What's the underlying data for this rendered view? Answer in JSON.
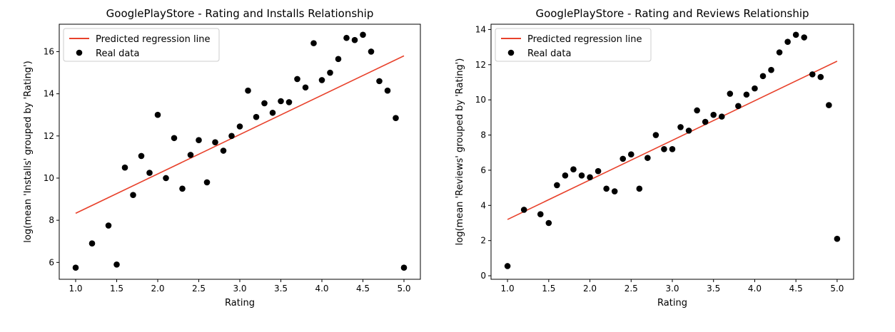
{
  "chart_data": [
    {
      "type": "scatter",
      "title": "GooglePlayStore - Rating and Installs Relationship",
      "xlabel": "Rating",
      "ylabel": "log(mean 'Installs' grouped by 'Rating')",
      "xlim": [
        0.8,
        5.2
      ],
      "ylim": [
        5.2,
        17.3
      ],
      "xticks": [
        "1.0",
        "1.5",
        "2.0",
        "2.5",
        "3.0",
        "3.5",
        "4.0",
        "4.5",
        "5.0"
      ],
      "yticks": [
        "6",
        "8",
        "10",
        "12",
        "14",
        "16"
      ],
      "grid": false,
      "legend_position": "upper-left",
      "series": [
        {
          "name": "Real data",
          "kind": "points",
          "color": "#000000",
          "x": [
            1.0,
            1.2,
            1.4,
            1.5,
            1.6,
            1.7,
            1.8,
            1.9,
            2.0,
            2.1,
            2.2,
            2.3,
            2.4,
            2.5,
            2.6,
            2.7,
            2.8,
            2.9,
            3.0,
            3.1,
            3.2,
            3.3,
            3.4,
            3.5,
            3.6,
            3.7,
            3.8,
            3.9,
            4.0,
            4.1,
            4.2,
            4.3,
            4.4,
            4.5,
            4.6,
            4.7,
            4.8,
            4.9,
            5.0
          ],
          "y": [
            5.75,
            6.9,
            7.75,
            5.9,
            10.5,
            9.2,
            11.05,
            10.25,
            13.0,
            10.0,
            11.9,
            9.5,
            11.1,
            11.8,
            9.8,
            11.7,
            11.3,
            12.0,
            12.45,
            14.15,
            12.9,
            13.55,
            13.1,
            13.65,
            13.6,
            14.7,
            14.3,
            16.4,
            14.65,
            15.0,
            15.65,
            16.65,
            16.55,
            16.8,
            16.0,
            14.6,
            14.15,
            12.85,
            5.75
          ]
        },
        {
          "name": "Predicted regression line",
          "kind": "line",
          "color": "#e8412b",
          "x": [
            1.0,
            5.0
          ],
          "y": [
            8.33,
            15.8
          ]
        }
      ]
    },
    {
      "type": "scatter",
      "title": "GooglePlayStore - Rating and Reviews Relationship",
      "xlabel": "Rating",
      "ylabel": "log(mean 'Reviews' grouped by 'Rating')",
      "xlim": [
        0.8,
        5.2
      ],
      "ylim": [
        -0.2,
        14.3
      ],
      "xticks": [
        "1.0",
        "1.5",
        "2.0",
        "2.5",
        "3.0",
        "3.5",
        "4.0",
        "4.5",
        "5.0"
      ],
      "yticks": [
        "0",
        "2",
        "4",
        "6",
        "8",
        "10",
        "12",
        "14"
      ],
      "grid": false,
      "legend_position": "upper-left",
      "series": [
        {
          "name": "Real data",
          "kind": "points",
          "color": "#000000",
          "x": [
            1.0,
            1.2,
            1.4,
            1.5,
            1.6,
            1.7,
            1.8,
            1.9,
            2.0,
            2.1,
            2.2,
            2.3,
            2.4,
            2.5,
            2.6,
            2.7,
            2.8,
            2.9,
            3.0,
            3.1,
            3.2,
            3.3,
            3.4,
            3.5,
            3.6,
            3.7,
            3.8,
            3.9,
            4.0,
            4.1,
            4.2,
            4.3,
            4.4,
            4.5,
            4.6,
            4.7,
            4.8,
            4.9,
            5.0
          ],
          "y": [
            0.55,
            3.75,
            3.5,
            3.0,
            5.15,
            5.7,
            6.05,
            5.7,
            5.6,
            5.95,
            4.95,
            4.8,
            6.65,
            6.9,
            4.95,
            6.7,
            8.0,
            7.2,
            7.2,
            8.45,
            8.25,
            9.4,
            8.75,
            9.15,
            9.05,
            10.35,
            9.65,
            10.3,
            10.65,
            11.35,
            11.7,
            12.7,
            13.3,
            13.7,
            13.55,
            11.45,
            11.3,
            9.7,
            2.1
          ]
        },
        {
          "name": "Predicted regression line",
          "kind": "line",
          "color": "#e8412b",
          "x": [
            1.0,
            5.0
          ],
          "y": [
            3.2,
            12.2
          ]
        }
      ]
    }
  ]
}
